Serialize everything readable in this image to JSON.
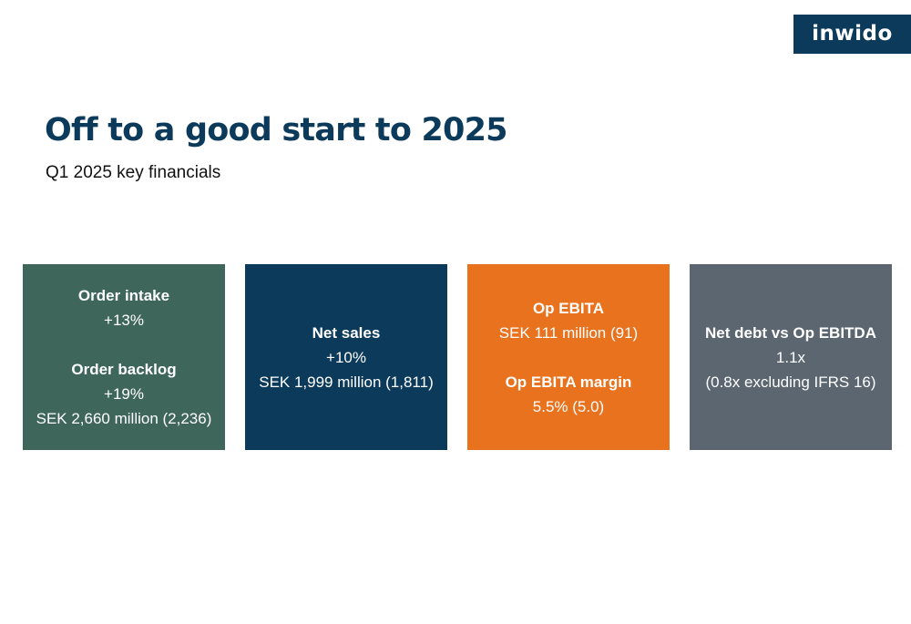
{
  "logo": {
    "text": "inwido"
  },
  "header": {
    "title": "Off to a good start to 2025",
    "subtitle": "Q1 2025 key financials"
  },
  "colors": {
    "navy": "#0c3a5b",
    "green": "#3e665b",
    "orange": "#e8721e",
    "gray": "#5b6670"
  },
  "cards": {
    "order": {
      "intake_label": "Order intake",
      "intake_change": "+13%",
      "backlog_label": "Order backlog",
      "backlog_change": "+19%",
      "backlog_value": "SEK 2,660 million (2,236)"
    },
    "sales": {
      "label": "Net sales",
      "change": "+10%",
      "value": "SEK 1,999 million (1,811)"
    },
    "ebita": {
      "label": "Op EBITA",
      "value": "SEK 111 million (91)",
      "margin_label": "Op EBITA margin",
      "margin_value": "5.5% (5.0)"
    },
    "debt": {
      "label": "Net debt vs Op EBITDA",
      "value": "1.1x",
      "note": "(0.8x excluding IFRS 16)"
    }
  }
}
